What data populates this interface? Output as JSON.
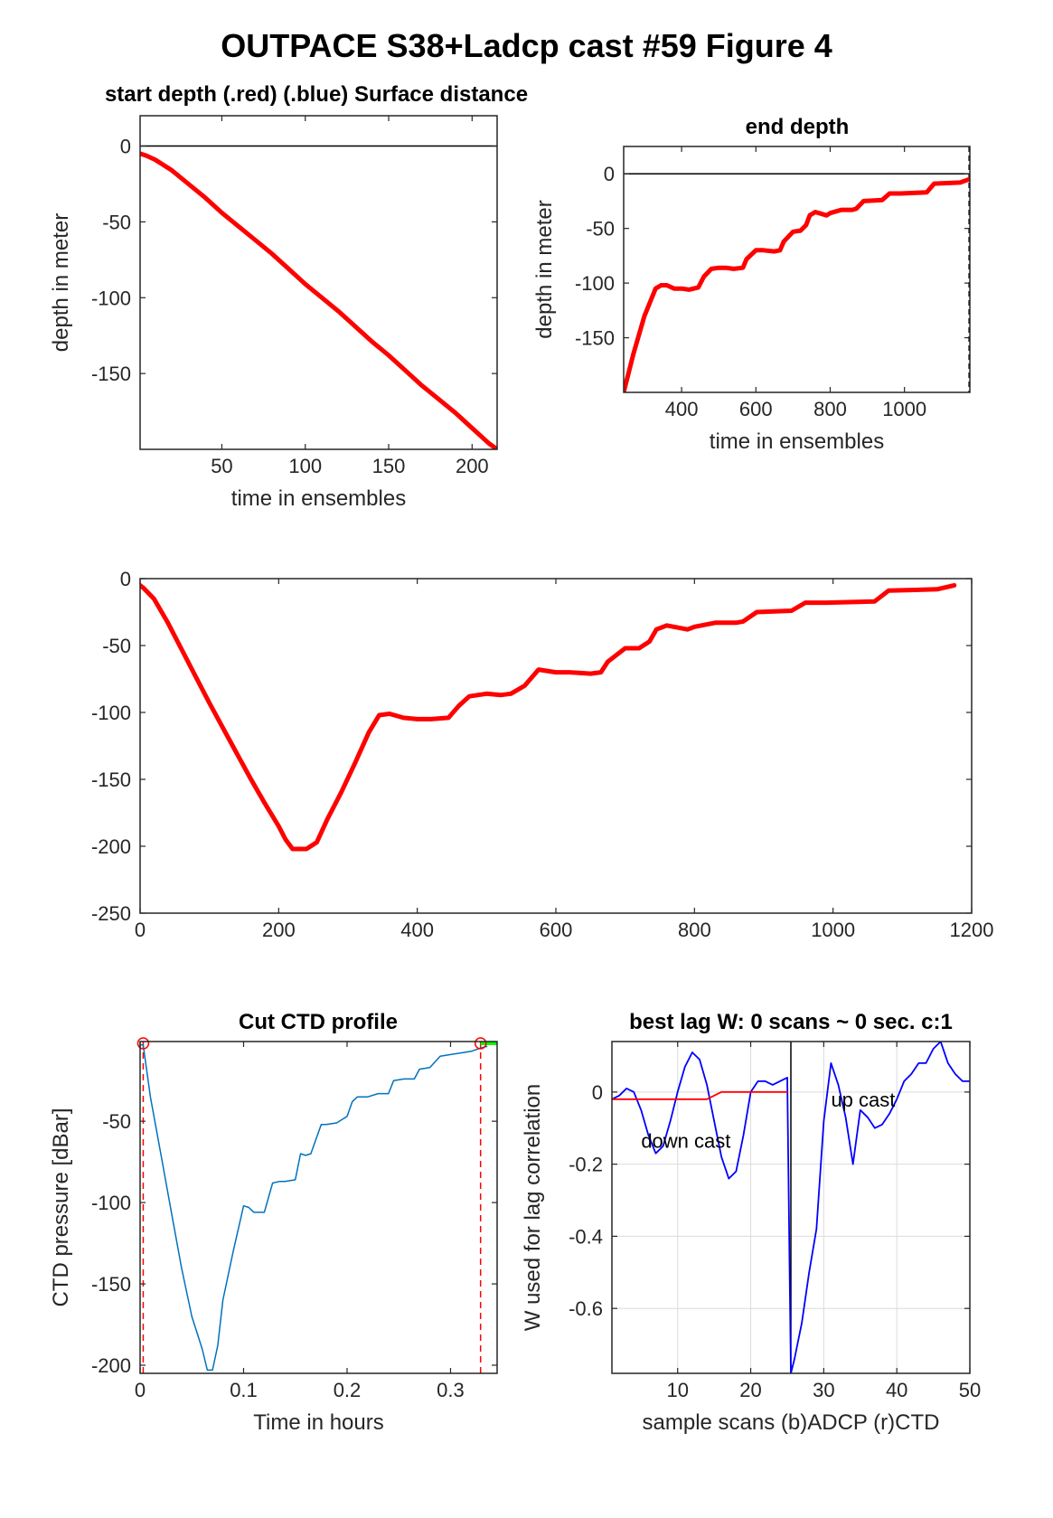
{
  "figure": {
    "title": "OUTPACE S38+Ladcp cast #59   Figure 4"
  },
  "colors": {
    "red": "#ff0000",
    "blue": "#0000ff",
    "ctd_blue": "#0072bd",
    "green": "#00ff00",
    "black": "#000000",
    "grid": "#dcdcdc"
  },
  "chart_data": [
    {
      "id": "start_depth",
      "type": "line",
      "title": "start depth (.red) (.blue) Surface distance",
      "xlabel": "time in ensembles",
      "ylabel": "depth in meter",
      "xlim": [
        1,
        215
      ],
      "ylim": [
        -200,
        20
      ],
      "xticks": [
        50,
        100,
        150,
        200
      ],
      "yticks": [
        0,
        -50,
        -100,
        -150
      ],
      "grid": false,
      "hlines": [
        0
      ],
      "series": [
        {
          "color": "red",
          "width": 5,
          "x": [
            1,
            5,
            10,
            20,
            30,
            40,
            50,
            60,
            70,
            80,
            90,
            100,
            110,
            120,
            130,
            140,
            150,
            160,
            170,
            180,
            190,
            200,
            210,
            215
          ],
          "y": [
            -5,
            -6.5,
            -9,
            -16,
            -25,
            -34,
            -44,
            -53,
            -62,
            -71,
            -81,
            -91,
            -100,
            -109,
            -119,
            -129,
            -138,
            -148,
            -158,
            -167,
            -176,
            -186,
            -196,
            -200
          ]
        }
      ]
    },
    {
      "id": "end_depth",
      "type": "line",
      "title": "end depth",
      "xlabel": "time in ensembles",
      "ylabel": "depth in meter",
      "xlim": [
        244,
        1176
      ],
      "ylim": [
        -200,
        25
      ],
      "xticks": [
        400,
        600,
        800,
        1000
      ],
      "yticks": [
        0,
        -50,
        -100,
        -150
      ],
      "grid": false,
      "hlines": [
        0
      ],
      "vlines_dashed": [
        1174
      ],
      "series": [
        {
          "color": "red",
          "width": 5,
          "x": [
            244,
            270,
            300,
            330,
            345,
            360,
            380,
            400,
            420,
            445,
            460,
            480,
            500,
            520,
            540,
            565,
            575,
            600,
            620,
            650,
            665,
            675,
            700,
            720,
            735,
            745,
            760,
            790,
            800,
            830,
            860,
            870,
            890,
            940,
            960,
            990,
            1060,
            1080,
            1150,
            1174
          ],
          "y": [
            -200,
            -165,
            -130,
            -105,
            -102,
            -102,
            -105,
            -105,
            -106,
            -104,
            -94,
            -87,
            -86,
            -86,
            -87,
            -86,
            -78,
            -70,
            -70,
            -71,
            -70,
            -62,
            -53,
            -52,
            -47,
            -38,
            -35,
            -38,
            -36,
            -33,
            -33,
            -32,
            -25,
            -24,
            -18,
            -18,
            -17,
            -9,
            -8,
            -5
          ]
        }
      ]
    },
    {
      "id": "full_profile",
      "type": "line",
      "title": "",
      "xlabel": "",
      "ylabel": "",
      "xlim": [
        0,
        1200
      ],
      "ylim": [
        -250,
        0
      ],
      "xticks": [
        0,
        200,
        400,
        600,
        800,
        1000,
        1200
      ],
      "yticks": [
        0,
        -50,
        -100,
        -150,
        -200,
        -250
      ],
      "grid": false,
      "series": [
        {
          "color": "red",
          "width": 5,
          "x": [
            0,
            5,
            20,
            40,
            60,
            80,
            100,
            120,
            140,
            160,
            180,
            200,
            210,
            220,
            240,
            255,
            270,
            290,
            310,
            330,
            345,
            360,
            380,
            400,
            420,
            445,
            460,
            475,
            500,
            520,
            535,
            555,
            575,
            600,
            620,
            650,
            665,
            675,
            700,
            720,
            735,
            745,
            760,
            790,
            800,
            830,
            860,
            870,
            890,
            940,
            960,
            990,
            1060,
            1080,
            1150,
            1175
          ],
          "y": [
            -5,
            -7,
            -15,
            -33,
            -53,
            -73,
            -93,
            -112,
            -131,
            -150,
            -168,
            -185,
            -195,
            -202,
            -202,
            -197,
            -180,
            -160,
            -138,
            -115,
            -102,
            -101,
            -104,
            -105,
            -105,
            -104,
            -95,
            -88,
            -86,
            -87,
            -86,
            -80,
            -68,
            -70,
            -70,
            -71,
            -70,
            -62,
            -52,
            -52,
            -47,
            -38,
            -35,
            -38,
            -36,
            -33,
            -33,
            -32,
            -25,
            -24,
            -18,
            -18,
            -17,
            -9,
            -8,
            -5
          ]
        }
      ]
    },
    {
      "id": "cut_ctd",
      "type": "line",
      "title": "Cut CTD profile",
      "xlabel": "Time in hours",
      "ylabel": "CTD pressure [dBar]",
      "xlim": [
        0,
        0.345
      ],
      "ylim": [
        -205,
        -1
      ],
      "xticks": [
        0,
        0.1,
        0.2,
        0.3
      ],
      "yticks": [
        -50,
        -100,
        -150,
        -200
      ],
      "grid": false,
      "vlines_red_dashed": [
        0.003,
        0.329
      ],
      "markers_red_circle": [
        {
          "x": 0.003,
          "y": -3
        },
        {
          "x": 0.329,
          "y": -3
        }
      ],
      "green_segment": {
        "x": [
          0.329,
          0.345
        ],
        "y": [
          -1,
          -1
        ]
      },
      "series": [
        {
          "color": "ctd_blue",
          "width": 1.5,
          "x": [
            0,
            0.003,
            0.01,
            0.02,
            0.03,
            0.04,
            0.05,
            0.06,
            0.065,
            0.07,
            0.075,
            0.08,
            0.09,
            0.1,
            0.105,
            0.11,
            0.12,
            0.128,
            0.135,
            0.14,
            0.15,
            0.155,
            0.16,
            0.165,
            0.175,
            0.18,
            0.19,
            0.2,
            0.205,
            0.21,
            0.22,
            0.23,
            0.24,
            0.245,
            0.255,
            0.265,
            0.27,
            0.28,
            0.29,
            0.3,
            0.31,
            0.32,
            0.329,
            0.335
          ],
          "y": [
            -3,
            -3,
            -35,
            -70,
            -105,
            -140,
            -170,
            -190,
            -203,
            -203,
            -188,
            -160,
            -130,
            -102,
            -103,
            -106,
            -106,
            -88,
            -87,
            -87,
            -86,
            -70,
            -71,
            -70,
            -52,
            -52,
            -51,
            -47,
            -38,
            -35,
            -35,
            -33,
            -33,
            -25,
            -24,
            -24,
            -18,
            -17,
            -10,
            -9,
            -8,
            -7,
            -5,
            -4
          ]
        }
      ]
    },
    {
      "id": "best_lag",
      "type": "line",
      "title": "best lag W: 0 scans ~ 0 sec.  c:1",
      "xlabel": "sample scans (b)ADCP (r)CTD",
      "ylabel": "W used for lag correlation",
      "xlim": [
        1,
        50
      ],
      "ylim": [
        -0.78,
        0.14
      ],
      "xticks": [
        10,
        20,
        30,
        40,
        50
      ],
      "yticks": [
        0,
        -0.2,
        -0.4,
        -0.6
      ],
      "grid": true,
      "vline_solid": 25.5,
      "annotations": [
        {
          "text": "down cast",
          "x": 5,
          "y": -0.155
        },
        {
          "text": "up cast",
          "x": 31,
          "y": -0.04
        }
      ],
      "series": [
        {
          "name": "",
          "color": "blue",
          "width": 1.8,
          "x": [
            1,
            2,
            3,
            4,
            5,
            6,
            7,
            8,
            9,
            10,
            11,
            12,
            13,
            14,
            15,
            16,
            17,
            18,
            19,
            20,
            21,
            22,
            23,
            24,
            25,
            25.5,
            26,
            27,
            28,
            29,
            30,
            31,
            32,
            33,
            34,
            35,
            36,
            37,
            38,
            39,
            40,
            41,
            42,
            43,
            44,
            45,
            46,
            47,
            48,
            49,
            50
          ],
          "y": [
            -0.02,
            -0.01,
            0.01,
            0.0,
            -0.05,
            -0.12,
            -0.17,
            -0.15,
            -0.08,
            0.0,
            0.07,
            0.11,
            0.09,
            0.02,
            -0.08,
            -0.18,
            -0.24,
            -0.22,
            -0.12,
            0.0,
            0.03,
            0.03,
            0.02,
            0.03,
            0.04,
            -0.78,
            -0.74,
            -0.64,
            -0.5,
            -0.38,
            -0.08,
            0.08,
            0.02,
            -0.07,
            -0.2,
            -0.05,
            -0.07,
            -0.1,
            -0.09,
            -0.06,
            -0.02,
            0.03,
            0.05,
            0.08,
            0.08,
            0.12,
            0.14,
            0.08,
            0.05,
            0.03,
            0.03
          ]
        },
        {
          "name": "",
          "color": "red",
          "width": 1.8,
          "x": [
            1,
            14,
            16,
            25
          ],
          "y": [
            -0.02,
            -0.02,
            0.0,
            0.0
          ]
        }
      ]
    }
  ]
}
